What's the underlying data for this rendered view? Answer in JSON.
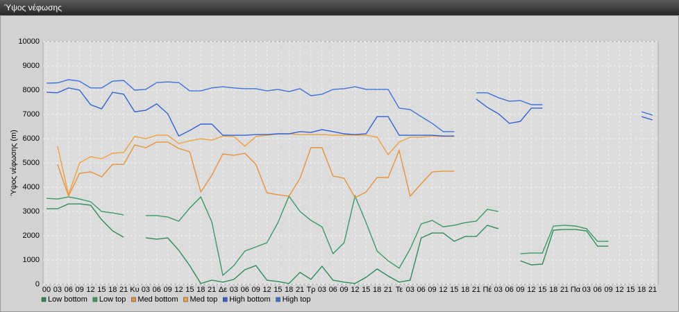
{
  "chart_data": {
    "type": "line",
    "title": "Ύψος νέφωσης",
    "y_label": "Ύψος νέφωσης (m)",
    "categories": [
      "00",
      "03",
      "06",
      "09",
      "12",
      "15",
      "18",
      "21",
      "Κυ",
      "03",
      "06",
      "09",
      "12",
      "15",
      "18",
      "21",
      "Δε",
      "03",
      "06",
      "09",
      "12",
      "15",
      "18",
      "21",
      "Τρ",
      "03",
      "06",
      "09",
      "12",
      "15",
      "18",
      "21",
      "Τε",
      "03",
      "06",
      "09",
      "12",
      "15",
      "18",
      "21",
      "Πέ",
      "03",
      "06",
      "09",
      "12",
      "15",
      "18",
      "21",
      "Πα",
      "03",
      "06",
      "09",
      "12",
      "15",
      "18",
      "21"
    ],
    "ylim": [
      0,
      10000
    ],
    "yticks": [
      0,
      1000,
      2000,
      3000,
      4000,
      5000,
      6000,
      7000,
      8000,
      9000,
      10000
    ],
    "grid": true,
    "legend": "bottom",
    "series": [
      {
        "name": "Low bottom",
        "color": "#2e8b57",
        "values": [
          3110,
          3110,
          3310,
          3310,
          3260,
          2660,
          2200,
          1940,
          null,
          1910,
          1860,
          1910,
          1400,
          770,
          30,
          170,
          90,
          200,
          600,
          770,
          170,
          110,
          30,
          490,
          200,
          740,
          170,
          90,
          30,
          290,
          630,
          340,
          90,
          170,
          1910,
          2110,
          2110,
          1770,
          1970,
          1970,
          2430,
          2290,
          null,
          970,
          800,
          830,
          2230,
          2260,
          2260,
          2200,
          1570,
          1570,
          null,
          null,
          null,
          null
        ]
      },
      {
        "name": "Low top",
        "color": "#3a9a62",
        "values": [
          3540,
          3510,
          3600,
          3510,
          3400,
          3000,
          2940,
          2860,
          null,
          2830,
          2830,
          2770,
          2600,
          3140,
          3600,
          2570,
          370,
          770,
          1370,
          1540,
          1710,
          2540,
          3630,
          3000,
          2630,
          2370,
          1260,
          1710,
          3630,
          2540,
          1370,
          970,
          660,
          1460,
          2490,
          2630,
          2370,
          2430,
          2540,
          2600,
          3090,
          3000,
          null,
          1260,
          1290,
          1290,
          2400,
          2430,
          2400,
          2290,
          1770,
          1770,
          null,
          null,
          null,
          null
        ]
      },
      {
        "name": "Med bottom",
        "color": "#e8923a",
        "values": [
          null,
          4940,
          3630,
          4570,
          4630,
          4430,
          4940,
          4940,
          5740,
          5630,
          5860,
          5860,
          5600,
          5460,
          3800,
          4490,
          5370,
          5310,
          5400,
          4940,
          3770,
          3690,
          3630,
          4370,
          5630,
          5630,
          4460,
          4370,
          3570,
          3800,
          4400,
          4400,
          5510,
          3630,
          4140,
          4630,
          4660,
          4660,
          null,
          null,
          null,
          null,
          null,
          null,
          null,
          null,
          null,
          null,
          null,
          null,
          null,
          null,
          null,
          null,
          null,
          null
        ]
      },
      {
        "name": "Med top",
        "color": "#f0a040",
        "values": [
          null,
          5690,
          3690,
          5000,
          5260,
          5170,
          5400,
          5430,
          6090,
          6000,
          6140,
          6140,
          5800,
          5910,
          6000,
          5940,
          6110,
          6090,
          5690,
          6090,
          6140,
          6200,
          6200,
          6170,
          6170,
          6170,
          6140,
          6140,
          6140,
          6140,
          6060,
          5340,
          5860,
          6060,
          6060,
          6110,
          6090,
          6090,
          null,
          null,
          null,
          null,
          null,
          null,
          null,
          null,
          null,
          null,
          null,
          null,
          null,
          null,
          null,
          null,
          null,
          null
        ]
      },
      {
        "name": "High bottom",
        "color": "#2f62d0",
        "values": [
          7910,
          7890,
          8090,
          8000,
          7400,
          7230,
          7910,
          7830,
          7110,
          7170,
          7430,
          7030,
          6110,
          6340,
          6600,
          6600,
          6140,
          6140,
          6140,
          6170,
          6170,
          6200,
          6200,
          6290,
          6260,
          6370,
          6290,
          6200,
          6170,
          6200,
          6910,
          6910,
          6140,
          6140,
          6140,
          6140,
          6110,
          6110,
          null,
          7630,
          7290,
          7030,
          6630,
          6710,
          7260,
          7260,
          null,
          null,
          null,
          null,
          null,
          null,
          null,
          null,
          6910,
          6770
        ]
      },
      {
        "name": "High top",
        "color": "#3d72dc",
        "values": [
          8290,
          8300,
          8430,
          8370,
          8090,
          8090,
          8370,
          8400,
          8000,
          8030,
          8310,
          8340,
          8310,
          7970,
          7970,
          8090,
          8140,
          8090,
          8060,
          8060,
          7970,
          8030,
          7940,
          8060,
          7770,
          7830,
          8030,
          8060,
          8140,
          8030,
          8030,
          8030,
          7260,
          7200,
          6910,
          6630,
          6290,
          6290,
          null,
          7890,
          7890,
          7690,
          7540,
          7570,
          7400,
          7400,
          null,
          null,
          null,
          null,
          null,
          null,
          null,
          null,
          7110,
          6970
        ]
      }
    ]
  }
}
